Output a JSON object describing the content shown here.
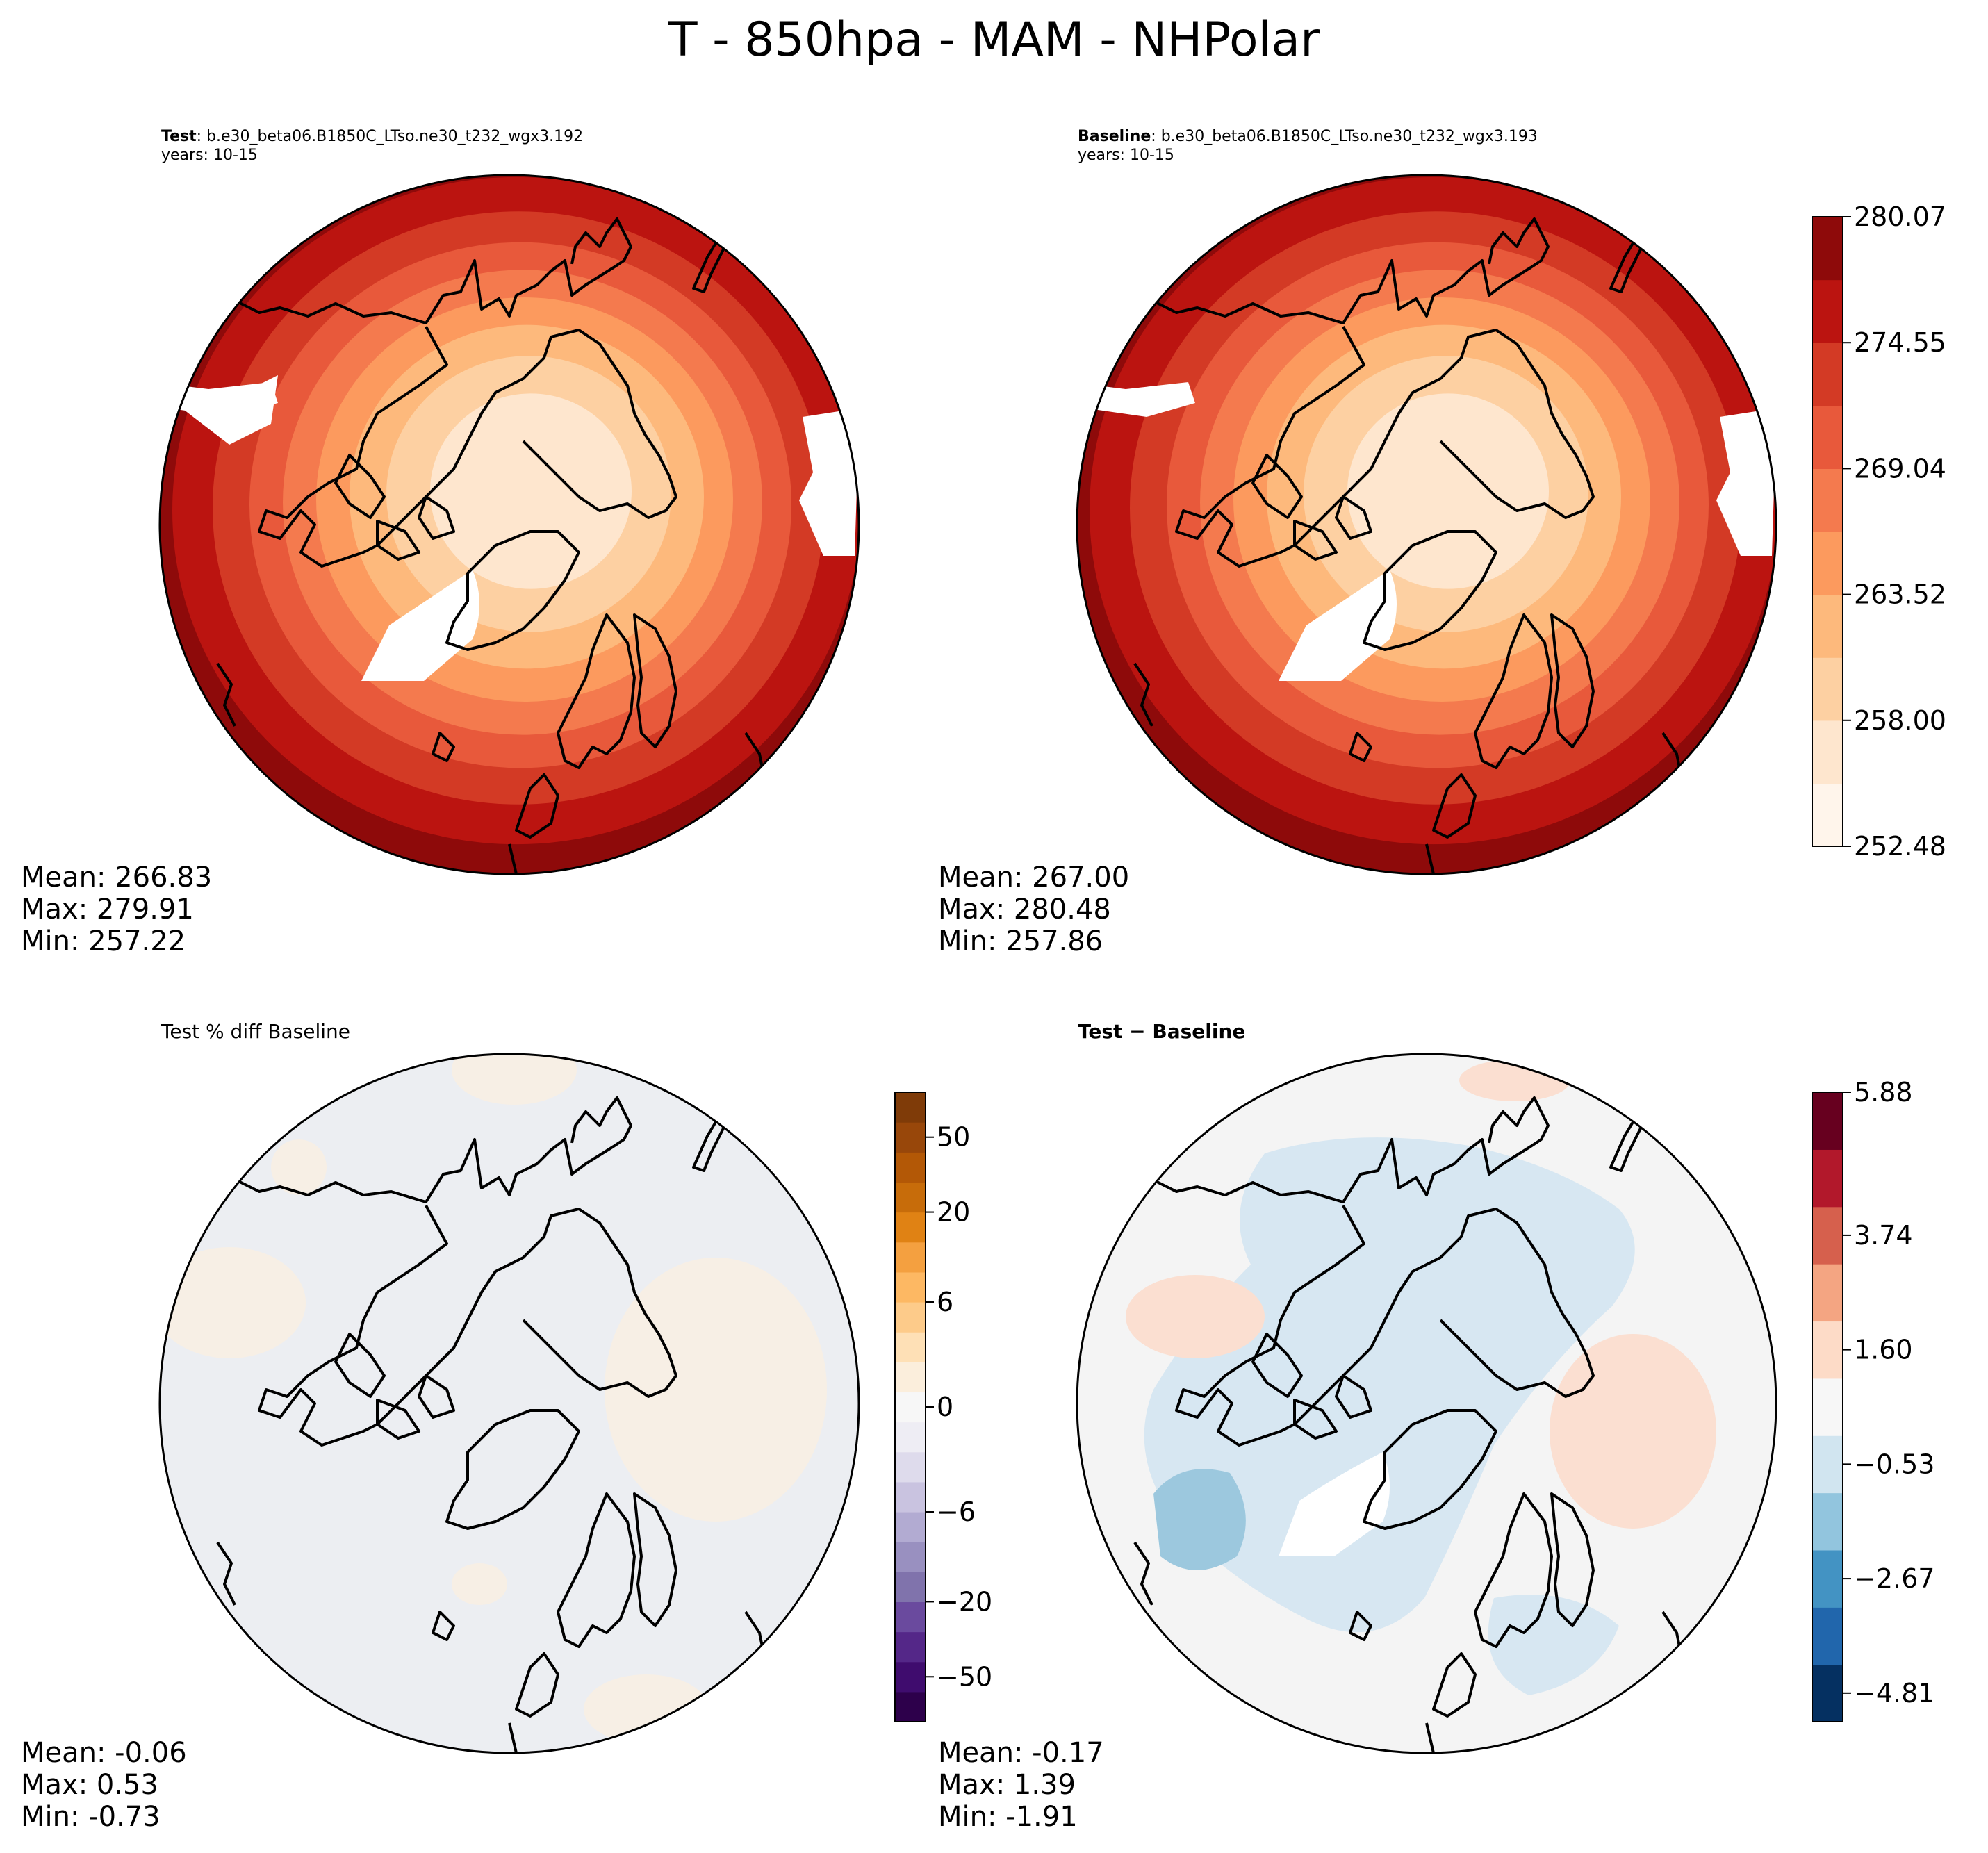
{
  "title": "T - 850hpa - MAM - NHPolar",
  "panels": [
    {
      "id": "test",
      "label_bold": "Test",
      "label_text": ": b.e30_beta06.B1850C_LTso.ne30_t232_wgx3.192",
      "years": "years: 10-15",
      "stats": {
        "mean": "Mean: 266.83",
        "max": "Max: 279.91",
        "min": "Min: 257.22"
      }
    },
    {
      "id": "baseline",
      "label_bold": "Baseline",
      "label_text": ": b.e30_beta06.B1850C_LTso.ne30_t232_wgx3.193",
      "years": "years: 10-15",
      "stats": {
        "mean": "Mean: 267.00",
        "max": "Max: 280.48",
        "min": "Min: 257.86"
      }
    },
    {
      "id": "pctdiff",
      "heading": "Test % diff Baseline",
      "stats": {
        "mean": "Mean: -0.06",
        "max": "Max:  0.53",
        "min": "Min: -0.73"
      }
    },
    {
      "id": "diff",
      "heading": "Test − Baseline",
      "stats": {
        "mean": "Mean: -0.17",
        "max": "Max:  1.39",
        "min": "Min: -1.91"
      }
    }
  ],
  "colorbars": {
    "temperature": {
      "ticks": [
        "252.48",
        "258.00",
        "263.52",
        "269.04",
        "274.55",
        "280.07"
      ],
      "colors": [
        "#fff5eb",
        "#fee6ce",
        "#fdd0a2",
        "#fdb97c",
        "#fc9a5e",
        "#f47a4e",
        "#e8593b",
        "#d33a25",
        "#bb1410",
        "#8e0a0a"
      ]
    },
    "pct_diff": {
      "ticks": [
        "−50",
        "−20",
        "−6",
        "0",
        "6",
        "20",
        "50"
      ],
      "colors": [
        "#2d004b",
        "#3f0c6e",
        "#542788",
        "#6a4a9e",
        "#8073ac",
        "#9990c0",
        "#b2abd2",
        "#c9c3e0",
        "#dedbec",
        "#eeedf4",
        "#f7f7f7",
        "#fbeedc",
        "#fee0b6",
        "#fdcb8a",
        "#fdb863",
        "#f4a040",
        "#e08214",
        "#c76c0a",
        "#b35806",
        "#98470a",
        "#7f3b08"
      ]
    },
    "diff": {
      "ticks": [
        "−4.81",
        "−2.67",
        "−0.53",
        "1.60",
        "3.74",
        "5.88"
      ],
      "colors": [
        "#053061",
        "#2166ac",
        "#4393c3",
        "#92c5de",
        "#d1e5f0",
        "#f7f7f7",
        "#fddbc7",
        "#f4a582",
        "#d6604d",
        "#b2182b",
        "#67001f"
      ]
    }
  },
  "field_colors": {
    "temp_rings": [
      "#bb1410",
      "#d33a25",
      "#e8593b",
      "#f47a4e",
      "#fc9a5e",
      "#fdb97c",
      "#fdd0a2",
      "#fee6ce"
    ],
    "land_outline": "#000000",
    "pct_background": "#eceef2",
    "pct_positive": "#f7efe5",
    "diff_background": "#f4f4f4",
    "diff_negative_light": "#d7e7f2",
    "diff_negative_mid": "#9cc8de",
    "diff_positive_light": "#fbdfd1"
  }
}
